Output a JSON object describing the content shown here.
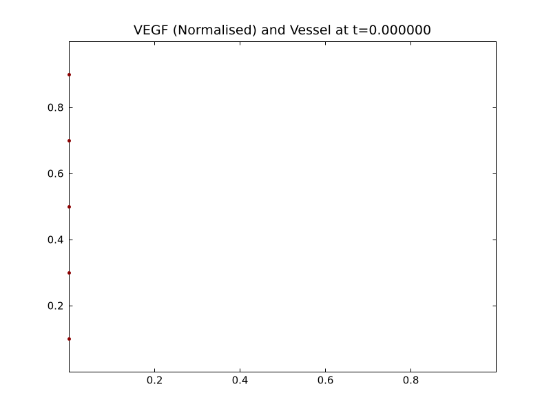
{
  "chart_data": {
    "type": "scatter",
    "title": "VEGF (Normalised) and Vessel at t=0.000000",
    "xlabel": "",
    "ylabel": "",
    "xlim": [
      0,
      1
    ],
    "ylim": [
      0,
      1
    ],
    "x_ticks": [
      0.2,
      0.4,
      0.6,
      0.8
    ],
    "x_tick_labels": [
      "0.2",
      "0.4",
      "0.6",
      "0.8"
    ],
    "y_ticks": [
      0.2,
      0.4,
      0.6,
      0.8
    ],
    "y_tick_labels": [
      "0.2",
      "0.4",
      "0.6",
      "0.8"
    ],
    "grid": false,
    "series": [
      {
        "color": "#8b0000",
        "marker": "circle",
        "points": [
          {
            "x": 0.0,
            "y": 0.1
          },
          {
            "x": 0.0,
            "y": 0.3
          },
          {
            "x": 0.0,
            "y": 0.5
          },
          {
            "x": 0.0,
            "y": 0.7
          },
          {
            "x": 0.0,
            "y": 0.9
          }
        ]
      }
    ]
  }
}
